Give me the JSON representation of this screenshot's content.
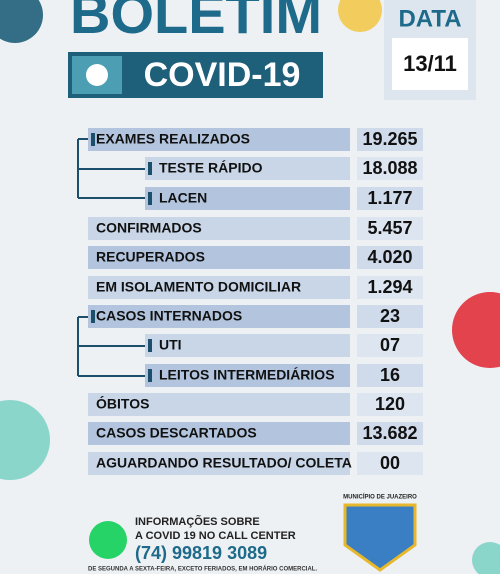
{
  "header": {
    "title": "BOLETIM",
    "subtitle": "COVID-19",
    "date_label": "DATA",
    "date": "13/11"
  },
  "table": {
    "rows": [
      [
        "EXAMES REALIZADOS",
        "19.265"
      ],
      [
        "TESTE RÁPIDO",
        "18.088"
      ],
      [
        "LACEN",
        "1.177"
      ],
      [
        "CONFIRMADOS",
        "5.457"
      ],
      [
        "RECUPERADOS",
        "4.020"
      ],
      [
        "EM ISOLAMENTO DOMICILIAR",
        "1.294"
      ],
      [
        "CASOS INTERNADOS",
        "23"
      ],
      [
        "UTI",
        "07"
      ],
      [
        "LEITOS INTERMEDIÁRIOS",
        "16"
      ],
      [
        "ÓBITOS",
        "120"
      ],
      [
        "CASOS DESCARTADOS",
        "13.682"
      ],
      [
        "AGUARDANDO RESULTADO/ COLETA",
        "00"
      ]
    ]
  },
  "footer": {
    "line1": "INFORMAÇÕES SOBRE",
    "line2": "A COVID 19 NO CALL CENTER",
    "phone": "(74) 99819 3089",
    "hours": "DE SEGUNDA A SEXTA-FEIRA, EXCETO FERIADOS, EM HORÁRIO COMERCIAL.",
    "logo": "MUNICÍPIO DE JUAZEIRO"
  }
}
